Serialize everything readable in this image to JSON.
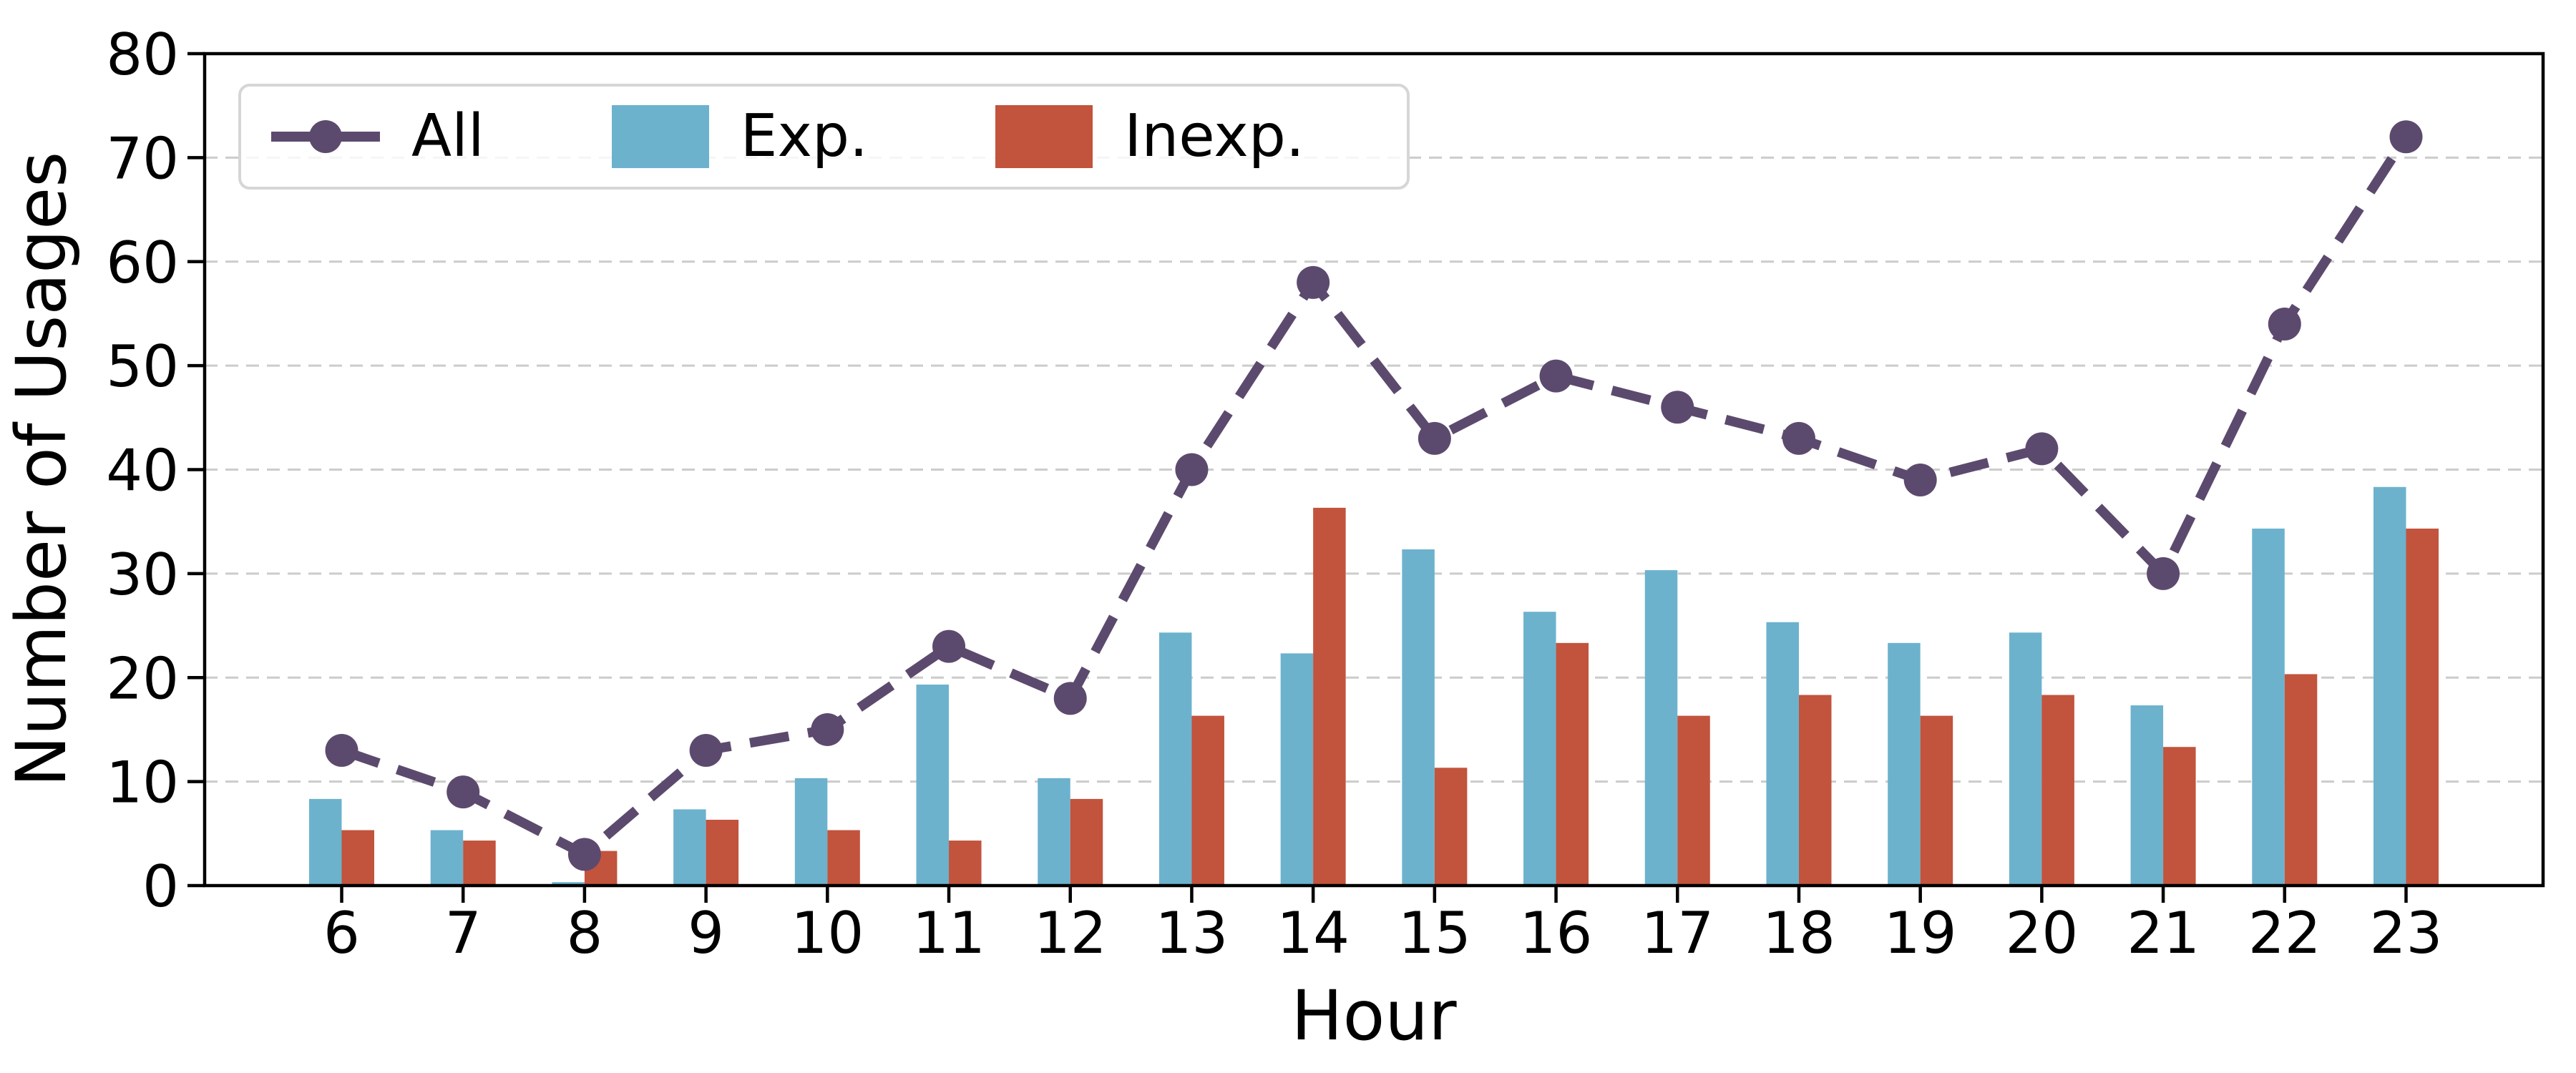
{
  "figure": {
    "xlabel": "Hour",
    "ylabel": "Number of Usages",
    "background": "#ffffff",
    "spine_color": "#000000",
    "grid_color": "#cccccc",
    "legend": [
      {
        "label": "All",
        "type": "line",
        "color": "#5C4A6E"
      },
      {
        "label": "Exp.",
        "type": "patch",
        "color": "#6CB2CD"
      },
      {
        "label": "Inexp.",
        "type": "patch",
        "color": "#C2533C"
      }
    ]
  },
  "chart_data": {
    "type": "bar",
    "title": "",
    "xlabel": "Hour",
    "ylabel": "Number of Usages",
    "categories": [
      "6",
      "7",
      "8",
      "9",
      "10",
      "11",
      "12",
      "13",
      "14",
      "15",
      "16",
      "17",
      "18",
      "19",
      "20",
      "21",
      "22",
      "23"
    ],
    "ylim": [
      0,
      80
    ],
    "yticks": [
      0,
      10,
      20,
      30,
      40,
      50,
      60,
      70,
      80
    ],
    "grid": "horizontal dashed",
    "legend_position": "upper left",
    "series": [
      {
        "name": "All",
        "type": "line",
        "style": "dashed",
        "marker": "circle",
        "color": "#5C4A6E",
        "values": [
          13,
          9,
          3,
          13,
          15,
          23,
          18,
          40,
          58,
          43,
          49,
          46,
          43,
          39,
          42,
          30,
          54,
          72
        ]
      },
      {
        "name": "Exp.",
        "type": "bar",
        "color": "#6CB2CD",
        "values": [
          8.33,
          5.33,
          0.33,
          7.33,
          10.33,
          19.33,
          10.33,
          24.33,
          22.33,
          32.33,
          26.33,
          30.33,
          25.33,
          23.33,
          24.33,
          17.33,
          34.33,
          38.33
        ]
      },
      {
        "name": "Inexp.",
        "type": "bar",
        "color": "#C2533C",
        "values": [
          5.33,
          4.33,
          3.33,
          6.33,
          5.33,
          4.33,
          8.33,
          16.33,
          36.33,
          11.33,
          23.33,
          16.33,
          18.33,
          16.33,
          18.33,
          13.33,
          20.33,
          34.33
        ]
      }
    ]
  }
}
